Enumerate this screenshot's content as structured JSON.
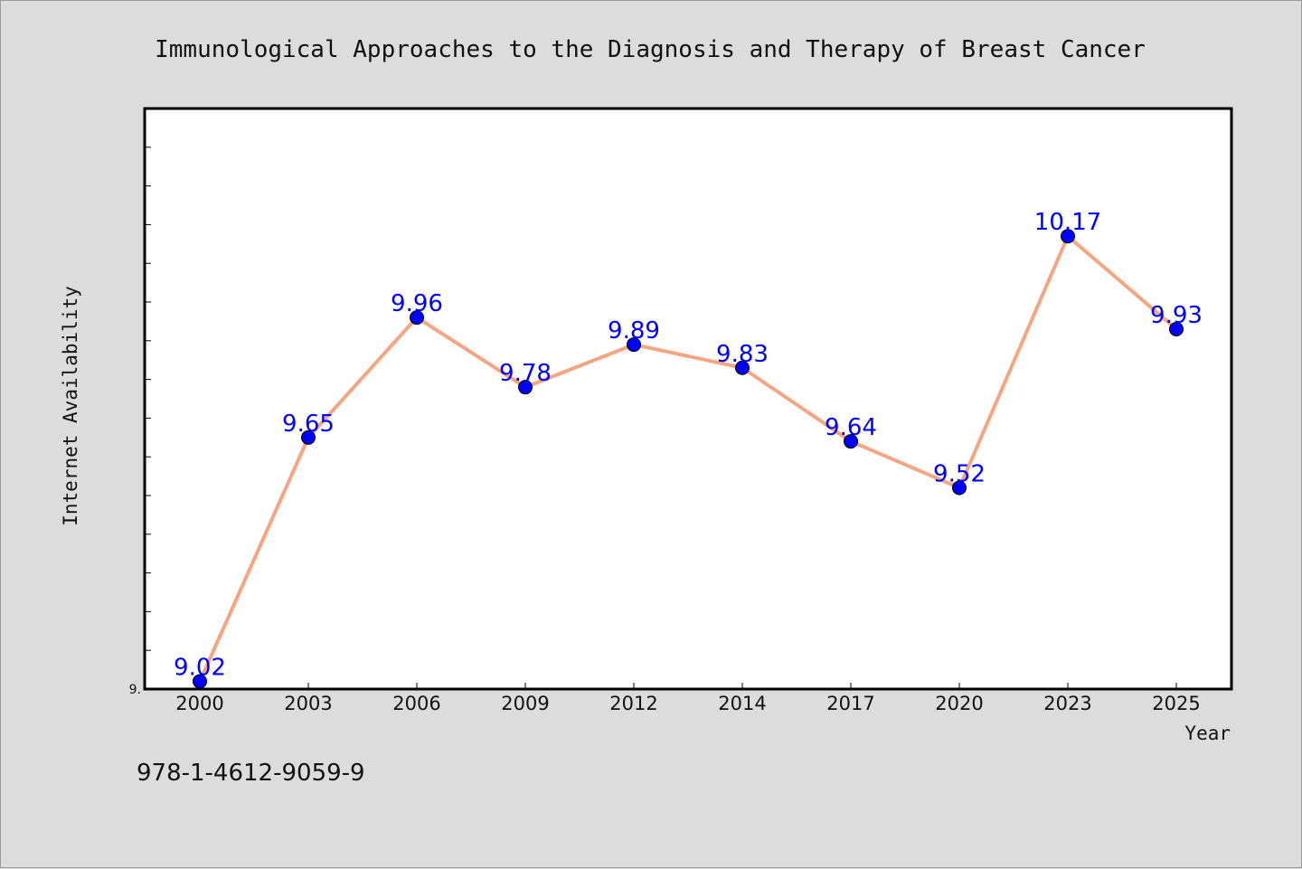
{
  "chart_data": {
    "type": "line",
    "title": "Immunological Approaches to the Diagnosis and Therapy of Breast Cancer",
    "xlabel": "Year",
    "ylabel": "Internet Availability",
    "categories": [
      "2000",
      "2003",
      "2006",
      "2009",
      "2012",
      "2014",
      "2017",
      "2020",
      "2023",
      "2025"
    ],
    "series": [
      {
        "values": [
          9.02,
          9.65,
          9.96,
          9.78,
          9.89,
          9.83,
          9.64,
          9.52,
          10.17,
          9.93
        ],
        "data_labels": [
          "9.02",
          "9.65",
          "9.96",
          "9.78",
          "9.89",
          "9.83",
          "9.64",
          "9.52",
          "10.17",
          "9.93"
        ],
        "line_color": "#f4a582",
        "marker_color": "#0000ff"
      }
    ],
    "ylim": [
      9.0,
      10.5
    ],
    "ytick_label": "9.",
    "grid": false,
    "legend": "none"
  },
  "footer": {
    "isbn": "978-1-4612-9059-9"
  }
}
